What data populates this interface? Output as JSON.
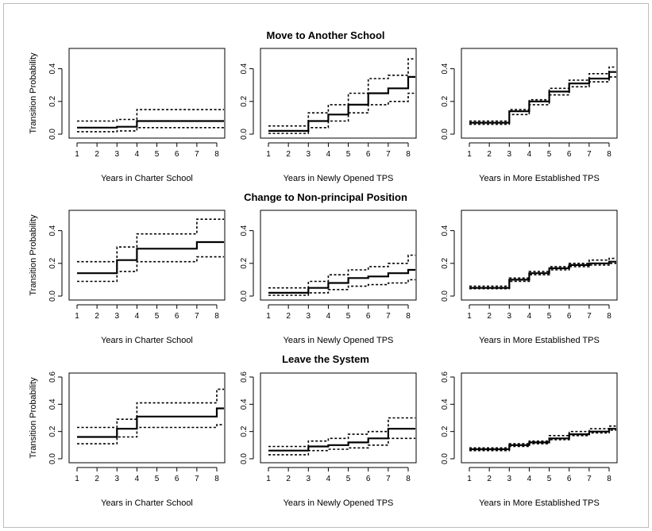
{
  "chart_data": {
    "type": "line",
    "step": true,
    "x_ticks": [
      1,
      2,
      3,
      4,
      5,
      6,
      7,
      8
    ],
    "xlim": [
      1,
      8
    ],
    "ylabel": "Transition Probability",
    "column_xlabels": [
      "Years in Charter School",
      "Years in Newly Opened TPS",
      "Years in More Established TPS"
    ],
    "colors": {
      "estimate": "#000000",
      "confidence_band": "#000000"
    },
    "rows": [
      {
        "title": "Move to Another School",
        "ylim": [
          0,
          0.5
        ],
        "y_ticks": [
          0.0,
          0.2,
          0.4
        ],
        "y_tick_labels": [
          "0.0",
          "0.2",
          "0.4"
        ],
        "panels": [
          {
            "xlabel": "Years in Charter School",
            "x": [
              1,
              2,
              3,
              4,
              5,
              6,
              7,
              8
            ],
            "series": [
              {
                "name": "",
                "role": "estimate",
                "values": [
                  0.04,
                  0.04,
                  0.045,
                  0.08,
                  0.08,
                  0.08,
                  0.08,
                  0.08
                ]
              },
              {
                "name": "",
                "role": "upper",
                "values": [
                  0.08,
                  0.08,
                  0.09,
                  0.15,
                  0.15,
                  0.15,
                  0.15,
                  0.15
                ]
              },
              {
                "name": "",
                "role": "lower",
                "values": [
                  0.015,
                  0.015,
                  0.02,
                  0.04,
                  0.04,
                  0.04,
                  0.04,
                  0.04
                ]
              }
            ]
          },
          {
            "xlabel": "Years in Newly Opened TPS",
            "x": [
              1,
              2,
              3,
              4,
              5,
              6,
              7,
              8
            ],
            "series": [
              {
                "name": "",
                "role": "estimate",
                "values": [
                  0.02,
                  0.02,
                  0.08,
                  0.12,
                  0.18,
                  0.25,
                  0.28,
                  0.35
                ]
              },
              {
                "name": "",
                "role": "upper",
                "values": [
                  0.05,
                  0.05,
                  0.13,
                  0.18,
                  0.25,
                  0.34,
                  0.36,
                  0.46
                ]
              },
              {
                "name": "",
                "role": "lower",
                "values": [
                  0.005,
                  0.005,
                  0.04,
                  0.08,
                  0.13,
                  0.18,
                  0.2,
                  0.25
                ]
              }
            ]
          },
          {
            "xlabel": "Years in More Established TPS",
            "x": [
              1,
              2,
              3,
              4,
              5,
              6,
              7,
              8
            ],
            "series": [
              {
                "name": "",
                "role": "estimate",
                "values": [
                  0.07,
                  0.07,
                  0.14,
                  0.2,
                  0.26,
                  0.31,
                  0.34,
                  0.38
                ]
              },
              {
                "name": "",
                "role": "upper",
                "values": [
                  0.08,
                  0.08,
                  0.15,
                  0.21,
                  0.28,
                  0.33,
                  0.37,
                  0.41
                ]
              },
              {
                "name": "",
                "role": "lower",
                "values": [
                  0.06,
                  0.06,
                  0.12,
                  0.18,
                  0.24,
                  0.29,
                  0.32,
                  0.35
                ]
              }
            ]
          }
        ]
      },
      {
        "title": "Change to Non-principal Position",
        "ylim": [
          0,
          0.5
        ],
        "y_ticks": [
          0.0,
          0.2,
          0.4
        ],
        "y_tick_labels": [
          "0.0",
          "0.2",
          "0.4"
        ],
        "panels": [
          {
            "xlabel": "Years in Charter School",
            "x": [
              1,
              2,
              3,
              4,
              5,
              6,
              7,
              8
            ],
            "series": [
              {
                "name": "",
                "role": "estimate",
                "values": [
                  0.14,
                  0.14,
                  0.22,
                  0.29,
                  0.29,
                  0.29,
                  0.33,
                  0.33
                ]
              },
              {
                "name": "",
                "role": "upper",
                "values": [
                  0.21,
                  0.21,
                  0.3,
                  0.38,
                  0.38,
                  0.38,
                  0.47,
                  0.47
                ]
              },
              {
                "name": "",
                "role": "lower",
                "values": [
                  0.09,
                  0.09,
                  0.15,
                  0.21,
                  0.21,
                  0.21,
                  0.24,
                  0.24
                ]
              }
            ]
          },
          {
            "xlabel": "Years in Newly Opened TPS",
            "x": [
              1,
              2,
              3,
              4,
              5,
              6,
              7,
              8
            ],
            "series": [
              {
                "name": "",
                "role": "estimate",
                "values": [
                  0.02,
                  0.02,
                  0.05,
                  0.08,
                  0.11,
                  0.12,
                  0.14,
                  0.16
                ]
              },
              {
                "name": "",
                "role": "upper",
                "values": [
                  0.05,
                  0.05,
                  0.09,
                  0.13,
                  0.16,
                  0.18,
                  0.2,
                  0.25
                ]
              },
              {
                "name": "",
                "role": "lower",
                "values": [
                  0.005,
                  0.005,
                  0.02,
                  0.04,
                  0.06,
                  0.07,
                  0.08,
                  0.1
                ]
              }
            ]
          },
          {
            "xlabel": "Years in More Established TPS",
            "x": [
              1,
              2,
              3,
              4,
              5,
              6,
              7,
              8
            ],
            "series": [
              {
                "name": "",
                "role": "estimate",
                "values": [
                  0.05,
                  0.05,
                  0.1,
                  0.14,
                  0.17,
                  0.19,
                  0.2,
                  0.21
                ]
              },
              {
                "name": "",
                "role": "upper",
                "values": [
                  0.06,
                  0.06,
                  0.11,
                  0.15,
                  0.18,
                  0.2,
                  0.22,
                  0.23
                ]
              },
              {
                "name": "",
                "role": "lower",
                "values": [
                  0.045,
                  0.045,
                  0.09,
                  0.13,
                  0.16,
                  0.18,
                  0.19,
                  0.2
                ]
              }
            ]
          }
        ]
      },
      {
        "title": "Leave the System",
        "ylim": [
          0,
          0.6
        ],
        "y_ticks": [
          0.0,
          0.2,
          0.4,
          0.6
        ],
        "y_tick_labels": [
          "0.0",
          "0.2",
          "0.4",
          "0.6"
        ],
        "panels": [
          {
            "xlabel": "Years in Charter School",
            "x": [
              1,
              2,
              3,
              4,
              5,
              6,
              7,
              8
            ],
            "series": [
              {
                "name": "",
                "role": "estimate",
                "values": [
                  0.16,
                  0.16,
                  0.22,
                  0.31,
                  0.31,
                  0.31,
                  0.31,
                  0.37
                ]
              },
              {
                "name": "",
                "role": "upper",
                "values": [
                  0.23,
                  0.23,
                  0.29,
                  0.41,
                  0.41,
                  0.41,
                  0.41,
                  0.51
                ]
              },
              {
                "name": "",
                "role": "lower",
                "values": [
                  0.11,
                  0.11,
                  0.16,
                  0.23,
                  0.23,
                  0.23,
                  0.23,
                  0.25
                ]
              }
            ]
          },
          {
            "xlabel": "Years in Newly Opened TPS",
            "x": [
              1,
              2,
              3,
              4,
              5,
              6,
              7,
              8
            ],
            "series": [
              {
                "name": "",
                "role": "estimate",
                "values": [
                  0.06,
                  0.06,
                  0.09,
                  0.1,
                  0.12,
                  0.15,
                  0.22,
                  0.22
                ]
              },
              {
                "name": "",
                "role": "upper",
                "values": [
                  0.09,
                  0.09,
                  0.13,
                  0.15,
                  0.18,
                  0.2,
                  0.3,
                  0.3
                ]
              },
              {
                "name": "",
                "role": "lower",
                "values": [
                  0.03,
                  0.03,
                  0.06,
                  0.07,
                  0.08,
                  0.1,
                  0.15,
                  0.15
                ]
              }
            ]
          },
          {
            "xlabel": "Years in More Established TPS",
            "x": [
              1,
              2,
              3,
              4,
              5,
              6,
              7,
              8
            ],
            "series": [
              {
                "name": "",
                "role": "estimate",
                "values": [
                  0.07,
                  0.07,
                  0.1,
                  0.12,
                  0.15,
                  0.18,
                  0.2,
                  0.22
                ]
              },
              {
                "name": "",
                "role": "upper",
                "values": [
                  0.08,
                  0.08,
                  0.11,
                  0.13,
                  0.17,
                  0.2,
                  0.22,
                  0.24
                ]
              },
              {
                "name": "",
                "role": "lower",
                "values": [
                  0.06,
                  0.06,
                  0.09,
                  0.11,
                  0.14,
                  0.17,
                  0.19,
                  0.21
                ]
              }
            ]
          }
        ]
      }
    ]
  }
}
